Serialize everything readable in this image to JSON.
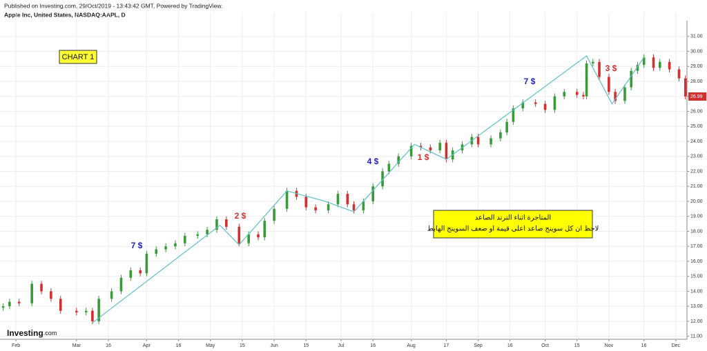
{
  "header": {
    "published": "Published on Investing.com, 29/Oct/2019 - 13:43:42 GMT, Powered by TradingView.",
    "symbol": "Apple Inc, United States, NASDAQ:AAPL, D"
  },
  "logo": {
    "name": "Investing",
    "suffix": ".com"
  },
  "chart_data": {
    "type": "candlestick",
    "x": [
      0,
      2,
      5,
      9,
      12,
      15,
      18,
      23,
      26,
      28,
      30,
      34,
      37,
      40,
      43,
      45,
      48,
      51,
      54,
      57,
      61,
      64,
      67,
      70,
      74,
      77,
      80,
      82,
      85,
      89,
      92,
      95,
      98,
      102,
      105,
      108,
      110,
      113,
      116,
      119,
      121,
      124,
      128,
      131,
      134,
      137,
      139,
      141,
      144,
      147,
      149,
      153,
      156,
      158,
      160,
      163,
      167,
      170,
      173,
      176,
      180,
      182,
      183,
      185,
      187,
      190,
      192,
      195,
      197,
      199,
      201,
      204,
      206,
      209,
      212,
      214
    ],
    "open": [
      12.9,
      13.0,
      13.3,
      13.2,
      14.5,
      14.0,
      13.5,
      12.7,
      12.6,
      12.7,
      12.0,
      13.5,
      14.0,
      14.9,
      15.4,
      15.2,
      16.5,
      16.8,
      17.0,
      17.2,
      17.7,
      17.8,
      18.1,
      18.8,
      18.3,
      17.2,
      17.8,
      17.6,
      18.7,
      19.5,
      20.7,
      20.3,
      19.6,
      19.4,
      19.8,
      20.5,
      19.8,
      19.4,
      20.0,
      21.0,
      22.0,
      22.5,
      23.0,
      23.7,
      23.6,
      23.4,
      23.9,
      22.8,
      23.4,
      23.8,
      24.3,
      23.8,
      24.2,
      24.6,
      25.3,
      26.2,
      26.6,
      26.5,
      26.1,
      27.0,
      27.3,
      27.1,
      27.0,
      29.2,
      29.3,
      28.3,
      27.3,
      26.7,
      27.6,
      28.7,
      29.1,
      29.6,
      28.9,
      29.3,
      28.8,
      28.2
    ],
    "high": [
      13.2,
      13.5,
      13.5,
      14.7,
      14.7,
      14.2,
      13.7,
      12.9,
      12.9,
      12.9,
      13.7,
      14.2,
      15.1,
      15.6,
      15.6,
      16.7,
      17.0,
      17.2,
      17.4,
      17.9,
      18.0,
      18.3,
      19.0,
      19.0,
      18.5,
      18.0,
      18.0,
      18.9,
      19.7,
      20.9,
      20.9,
      20.5,
      19.8,
      20.0,
      20.7,
      20.7,
      20.0,
      20.2,
      21.2,
      22.2,
      22.7,
      23.2,
      23.9,
      23.9,
      23.8,
      24.1,
      24.1,
      23.6,
      24.0,
      24.5,
      24.5,
      24.4,
      24.8,
      25.5,
      26.4,
      26.8,
      26.8,
      26.7,
      27.2,
      27.5,
      27.5,
      27.3,
      29.4,
      29.5,
      29.5,
      28.5,
      27.5,
      27.8,
      28.9,
      29.3,
      29.8,
      29.8,
      29.5,
      29.5,
      29.0,
      28.4
    ],
    "low": [
      12.7,
      12.8,
      13.0,
      13.0,
      13.8,
      13.3,
      12.5,
      12.4,
      12.4,
      11.8,
      11.8,
      13.3,
      13.8,
      14.7,
      15.0,
      15.0,
      16.3,
      16.6,
      16.8,
      17.0,
      17.5,
      17.6,
      17.9,
      18.1,
      17.0,
      17.0,
      17.4,
      17.4,
      18.5,
      19.3,
      20.1,
      19.4,
      19.2,
      19.2,
      19.6,
      19.6,
      19.2,
      19.2,
      19.8,
      20.8,
      21.8,
      22.3,
      22.8,
      23.4,
      23.2,
      23.2,
      22.6,
      22.6,
      23.2,
      23.6,
      23.6,
      23.6,
      24.0,
      24.4,
      25.1,
      26.0,
      26.3,
      25.9,
      25.9,
      26.8,
      26.9,
      26.8,
      26.8,
      29.0,
      28.1,
      27.1,
      26.5,
      26.5,
      27.4,
      28.5,
      28.9,
      28.7,
      28.7,
      28.6,
      28.0,
      26.8
    ],
    "close": [
      13.0,
      13.3,
      13.2,
      14.5,
      14.0,
      13.5,
      12.7,
      12.6,
      12.7,
      12.0,
      13.5,
      14.0,
      14.9,
      15.4,
      15.2,
      16.5,
      16.8,
      17.0,
      17.2,
      17.7,
      17.8,
      18.1,
      18.8,
      18.3,
      17.2,
      17.8,
      17.6,
      18.7,
      19.5,
      20.7,
      20.3,
      19.6,
      19.4,
      19.8,
      20.5,
      19.8,
      19.4,
      20.0,
      21.0,
      22.0,
      22.5,
      23.0,
      23.7,
      23.6,
      23.4,
      23.9,
      22.8,
      23.4,
      23.8,
      24.3,
      23.8,
      24.2,
      24.6,
      25.3,
      26.2,
      26.6,
      26.5,
      26.1,
      27.0,
      27.3,
      27.1,
      27.0,
      29.2,
      29.3,
      28.3,
      27.3,
      26.7,
      27.6,
      28.7,
      29.1,
      29.6,
      28.9,
      29.3,
      28.8,
      28.2,
      26.99
    ],
    "up_color": "#3a9a3a",
    "down_color": "#d32f2f",
    "last_price": 26.99,
    "trend_line": {
      "x": [
        28,
        68,
        74,
        89,
        101,
        110,
        129,
        139,
        183,
        191,
        201
      ],
      "values": [
        11.9,
        18.4,
        17.1,
        20.7,
        20.0,
        19.3,
        23.8,
        22.8,
        29.7,
        26.5,
        29.6
      ],
      "color": "#5bc0c8"
    },
    "xlim": [
      -1,
      214.5
    ],
    "ylim": [
      10.8,
      32.6
    ],
    "xticks": [
      {
        "value": 4,
        "label": "Feb"
      },
      {
        "value": 23,
        "label": "Mar"
      },
      {
        "value": 33,
        "label": "16"
      },
      {
        "value": 45,
        "label": "Apr"
      },
      {
        "value": 55,
        "label": "16"
      },
      {
        "value": 65,
        "label": "May"
      },
      {
        "value": 75,
        "label": "15"
      },
      {
        "value": 85,
        "label": "Jun"
      },
      {
        "value": 95,
        "label": "15"
      },
      {
        "value": 106,
        "label": "Jul"
      },
      {
        "value": 116,
        "label": "16"
      },
      {
        "value": 128,
        "label": "Aug"
      },
      {
        "value": 139,
        "label": "17"
      },
      {
        "value": 149,
        "label": "Sep"
      },
      {
        "value": 159,
        "label": "16"
      },
      {
        "value": 170,
        "label": "Oct"
      },
      {
        "value": 180,
        "label": "15"
      },
      {
        "value": 190,
        "label": "Nov"
      },
      {
        "value": 201,
        "label": "16"
      },
      {
        "value": 211,
        "label": "Dec"
      }
    ],
    "yticks": [
      {
        "value": 11,
        "label": "11.00"
      },
      {
        "value": 12,
        "label": "12.00"
      },
      {
        "value": 13,
        "label": "13.00"
      },
      {
        "value": 14,
        "label": "14.00"
      },
      {
        "value": 15,
        "label": "15.00"
      },
      {
        "value": 16,
        "label": "16.00"
      },
      {
        "value": 17,
        "label": "17.00"
      },
      {
        "value": 18,
        "label": "18.00"
      },
      {
        "value": 19,
        "label": "19.00"
      },
      {
        "value": 20,
        "label": "20.00"
      },
      {
        "value": 21,
        "label": "21.00"
      },
      {
        "value": 22,
        "label": "22.00"
      },
      {
        "value": 23,
        "label": "23.00"
      },
      {
        "value": 24,
        "label": "24.00"
      },
      {
        "value": 25,
        "label": "25.00"
      },
      {
        "value": 26,
        "label": "26.00"
      },
      {
        "value": 27,
        "label": "27.00"
      },
      {
        "value": 28,
        "label": "28.00"
      },
      {
        "value": 29,
        "label": "29.00"
      },
      {
        "value": 30,
        "label": "30.00"
      },
      {
        "value": 31,
        "label": "31.00"
      }
    ],
    "grid": true,
    "annotations": [
      {
        "text": "7 $",
        "color": "#2222bb"
      },
      {
        "text": "2 $",
        "color": "#d32f2f"
      },
      {
        "text": "4 $",
        "color": "#2222bb"
      },
      {
        "text": "1 $",
        "color": "#d32f2f"
      },
      {
        "text": "7 $",
        "color": "#2222bb"
      },
      {
        "text": "3 $",
        "color": "#d32f2f"
      }
    ],
    "label_box": "CHART 1",
    "note": [
      "المتاجرة اثناء الترند الصاعد",
      "لاحظ ان كل سوينج صاعد اعلى قيمة او ضعف السوينج الهابط"
    ]
  }
}
